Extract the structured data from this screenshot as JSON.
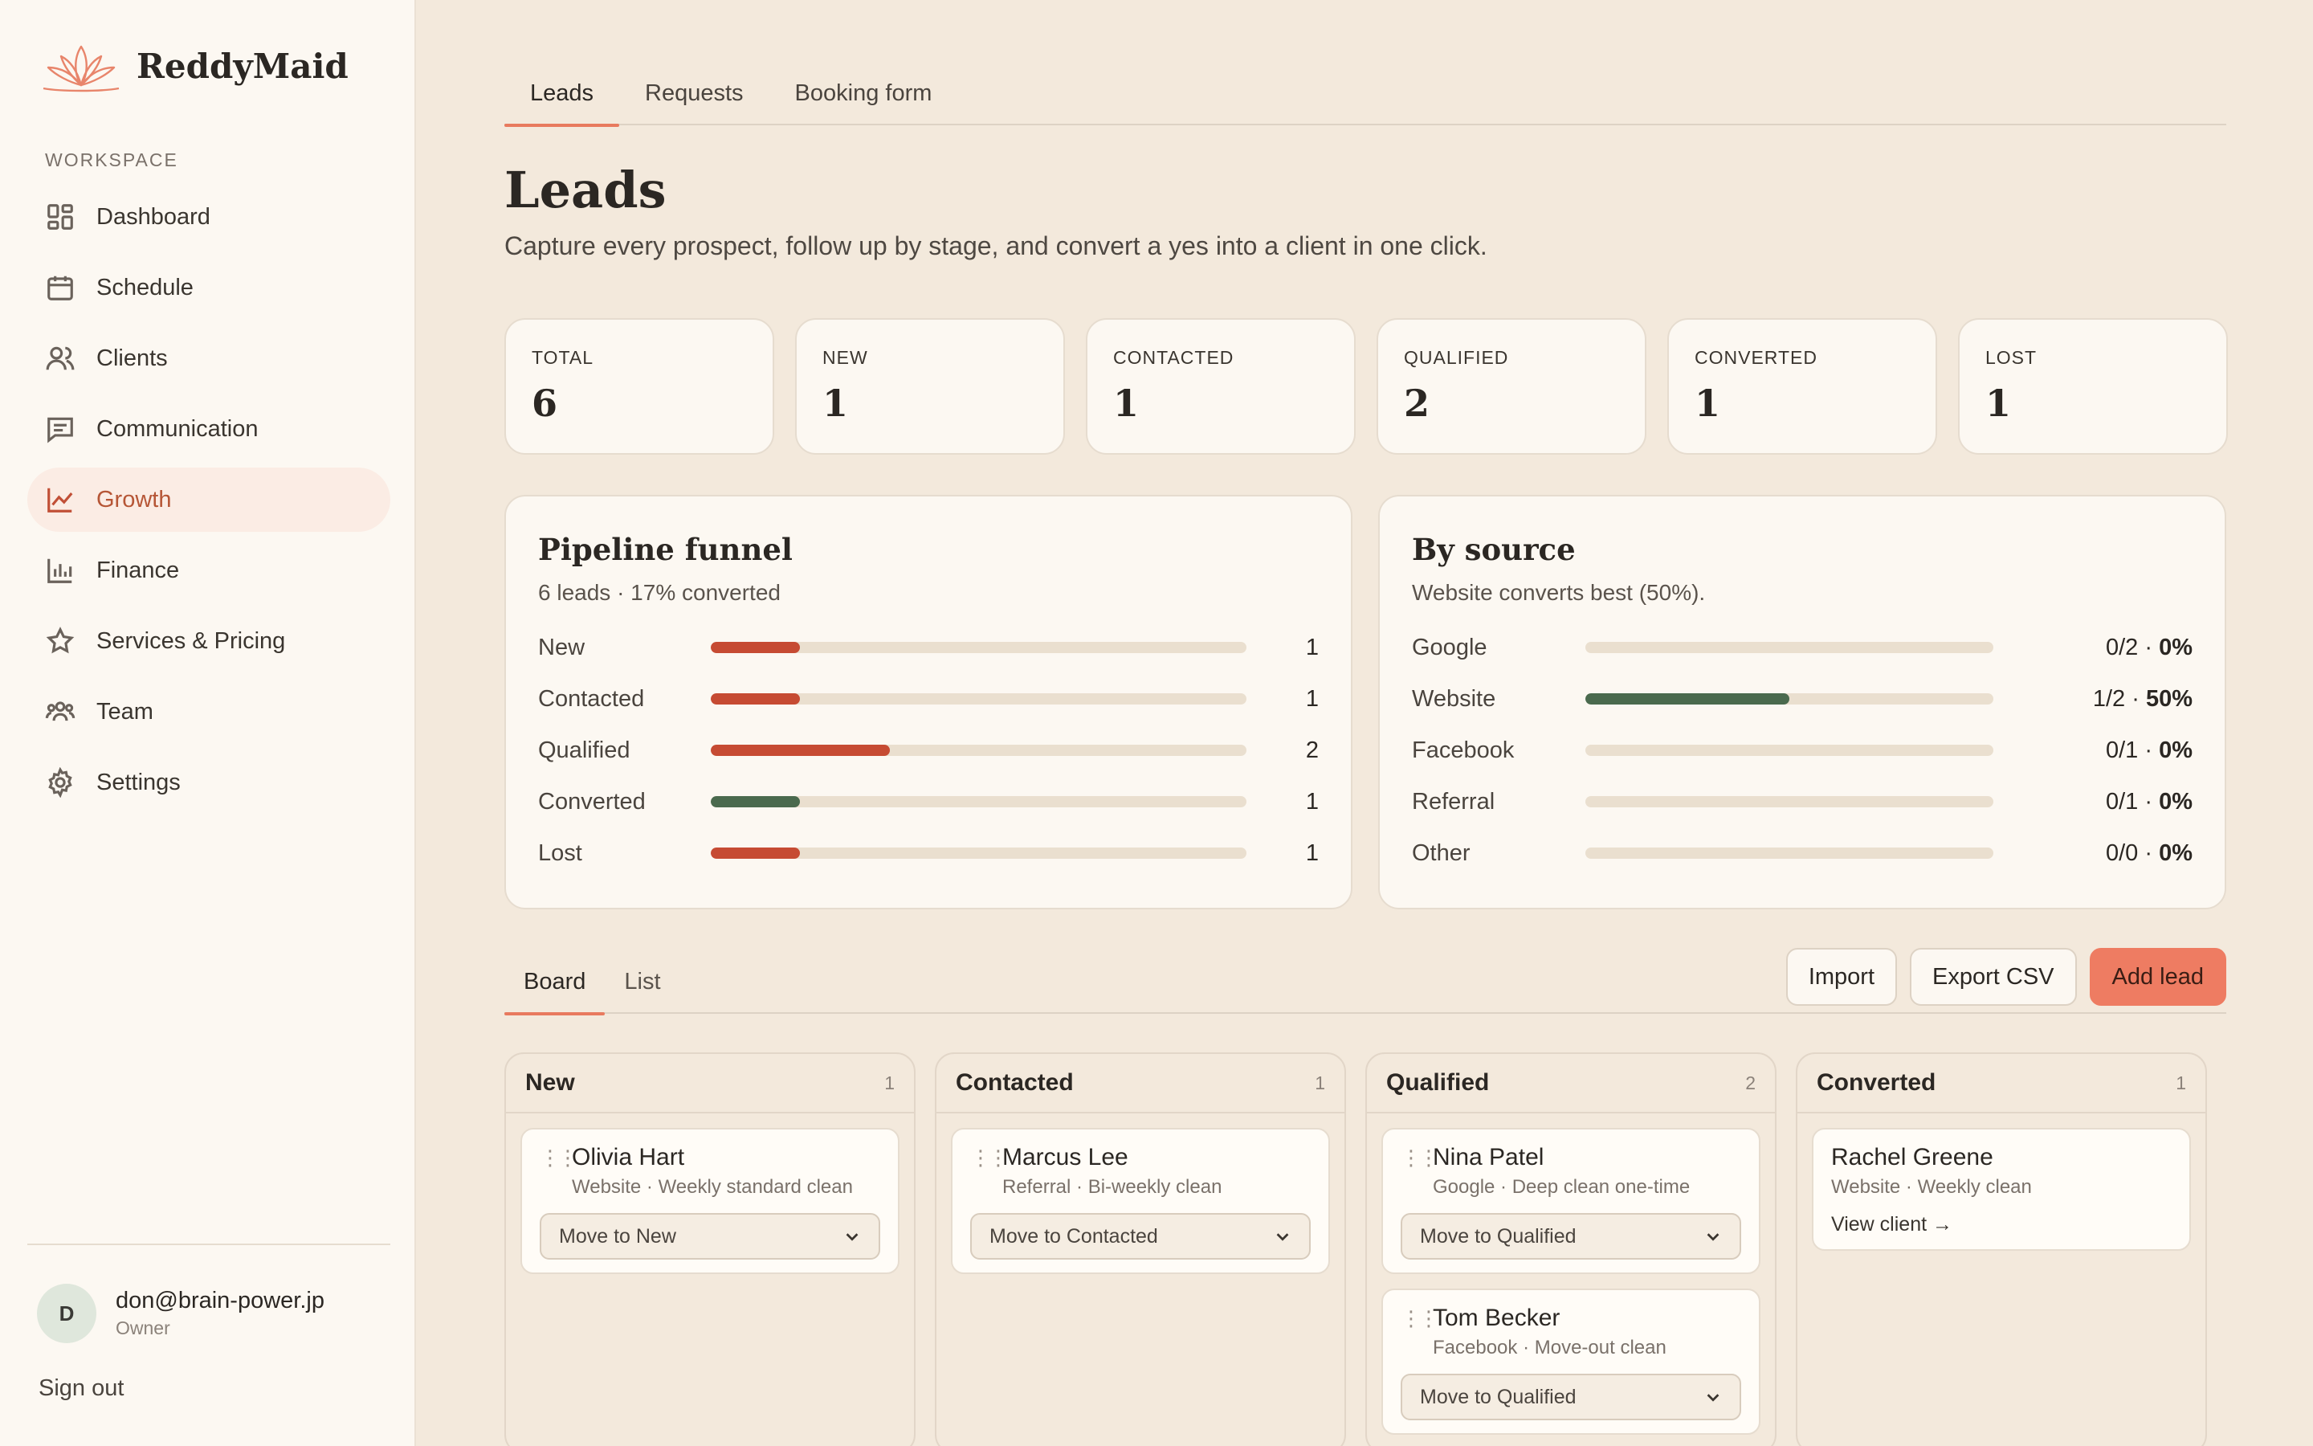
{
  "brand": {
    "name": "ReddyMaid"
  },
  "sidebar": {
    "section_label": "WORKSPACE",
    "items": [
      {
        "label": "Dashboard",
        "icon": "grid-icon"
      },
      {
        "label": "Schedule",
        "icon": "calendar-icon"
      },
      {
        "label": "Clients",
        "icon": "users-icon"
      },
      {
        "label": "Communication",
        "icon": "message-icon"
      },
      {
        "label": "Growth",
        "icon": "trend-icon",
        "active": true
      },
      {
        "label": "Finance",
        "icon": "bar-chart-icon"
      },
      {
        "label": "Services & Pricing",
        "icon": "star-icon"
      },
      {
        "label": "Team",
        "icon": "team-icon"
      },
      {
        "label": "Settings",
        "icon": "gear-icon"
      }
    ],
    "user": {
      "initial": "D",
      "email": "don@brain-power.jp",
      "role": "Owner"
    },
    "signout_label": "Sign out"
  },
  "tabs": [
    "Leads",
    "Requests",
    "Booking form"
  ],
  "page": {
    "title": "Leads",
    "subtitle": "Capture every prospect, follow up by stage, and convert a yes into a client in one click."
  },
  "stats": [
    {
      "label": "TOTAL",
      "value": "6"
    },
    {
      "label": "NEW",
      "value": "1"
    },
    {
      "label": "CONTACTED",
      "value": "1"
    },
    {
      "label": "QUALIFIED",
      "value": "2"
    },
    {
      "label": "CONVERTED",
      "value": "1"
    },
    {
      "label": "LOST",
      "value": "1"
    }
  ],
  "funnel": {
    "title": "Pipeline funnel",
    "subtitle": "6 leads · 17% converted",
    "rows": [
      {
        "label": "New",
        "count": "1",
        "fraction": 0.1667,
        "color": "#c64b33"
      },
      {
        "label": "Contacted",
        "count": "1",
        "fraction": 0.1667,
        "color": "#c64b33"
      },
      {
        "label": "Qualified",
        "count": "2",
        "fraction": 0.3333,
        "color": "#c64b33"
      },
      {
        "label": "Converted",
        "count": "1",
        "fraction": 0.1667,
        "color": "#4a6a4e"
      },
      {
        "label": "Lost",
        "count": "1",
        "fraction": 0.1667,
        "color": "#c64b33"
      }
    ]
  },
  "sources": {
    "title": "By source",
    "subtitle": "Website converts best (50%).",
    "rows": [
      {
        "label": "Google",
        "ratio": "0/2",
        "pct": "0%",
        "fraction": 0
      },
      {
        "label": "Website",
        "ratio": "1/2",
        "pct": "50%",
        "fraction": 0.5
      },
      {
        "label": "Facebook",
        "ratio": "0/1",
        "pct": "0%",
        "fraction": 0
      },
      {
        "label": "Referral",
        "ratio": "0/1",
        "pct": "0%",
        "fraction": 0
      },
      {
        "label": "Other",
        "ratio": "0/0",
        "pct": "0%",
        "fraction": 0
      }
    ],
    "fill_color": "#4a6a4e"
  },
  "view_tabs": [
    "Board",
    "List"
  ],
  "actions": {
    "import": "Import",
    "export": "Export CSV",
    "add": "Add lead"
  },
  "board": [
    {
      "title": "New",
      "count": "1",
      "cards": [
        {
          "name": "Olivia Hart",
          "meta": "Website · Weekly standard clean",
          "select": "Move to New"
        }
      ]
    },
    {
      "title": "Contacted",
      "count": "1",
      "cards": [
        {
          "name": "Marcus Lee",
          "meta": "Referral · Bi-weekly clean",
          "select": "Move to Contacted"
        }
      ]
    },
    {
      "title": "Qualified",
      "count": "2",
      "cards": [
        {
          "name": "Nina Patel",
          "meta": "Google · Deep clean one-time",
          "select": "Move to Qualified"
        },
        {
          "name": "Tom Becker",
          "meta": "Facebook · Move-out clean",
          "select": "Move to Qualified"
        }
      ]
    },
    {
      "title": "Converted",
      "count": "1",
      "cards": [
        {
          "name": "Rachel Greene",
          "meta": "Website · Weekly clean",
          "link": "View client →"
        }
      ]
    }
  ]
}
